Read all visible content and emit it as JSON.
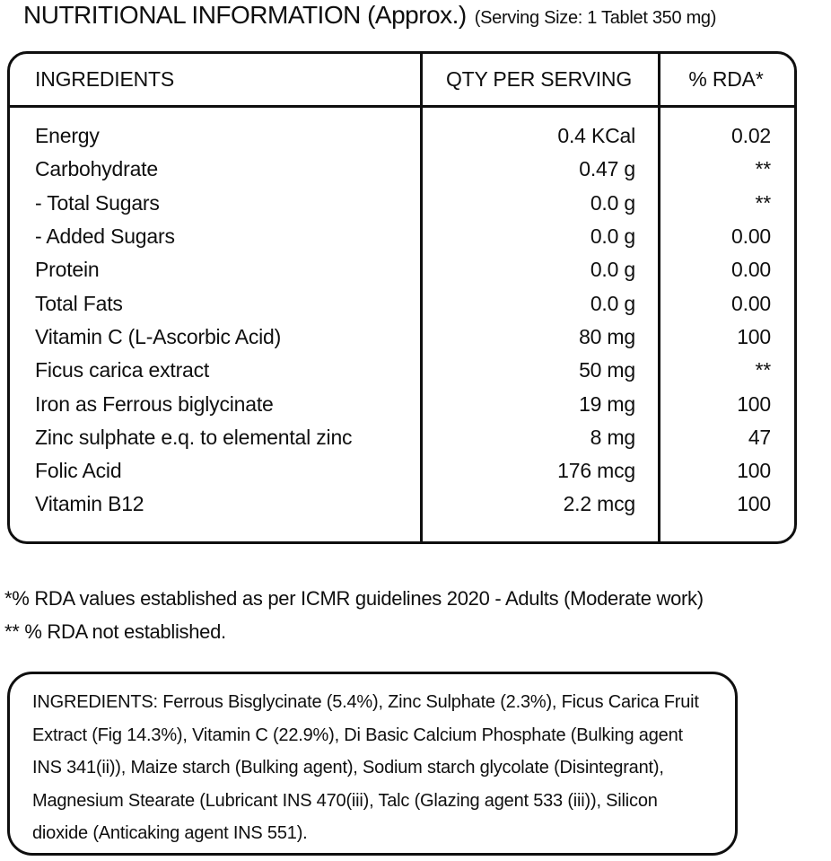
{
  "title": {
    "main": "NUTRITIONAL INFORMATION (Approx.)",
    "serving": "(Serving Size: 1 Tablet 350 mg)"
  },
  "table": {
    "headers": [
      "INGREDIENTS",
      "QTY PER SERVING",
      "% RDA*"
    ],
    "rows": [
      {
        "ingredient": "Energy",
        "qty": "0.4 KCal",
        "rda": "0.02"
      },
      {
        "ingredient": "Carbohydrate",
        "qty": "0.47 g",
        "rda": "**"
      },
      {
        "ingredient": "- Total Sugars",
        "qty": "0.0 g",
        "rda": "**"
      },
      {
        "ingredient": "- Added Sugars",
        "qty": "0.0 g",
        "rda": "0.00"
      },
      {
        "ingredient": "Protein",
        "qty": "0.0 g",
        "rda": "0.00"
      },
      {
        "ingredient": "Total Fats",
        "qty": "0.0 g",
        "rda": "0.00"
      },
      {
        "ingredient": "Vitamin C (L-Ascorbic Acid)",
        "qty": "80 mg",
        "rda": "100"
      },
      {
        "ingredient": "Ficus carica extract",
        "qty": "50 mg",
        "rda": "**"
      },
      {
        "ingredient": "Iron as Ferrous biglycinate",
        "qty": "19 mg",
        "rda": "100"
      },
      {
        "ingredient": "Zinc sulphate e.q. to elemental zinc",
        "qty": "8 mg",
        "rda": "47"
      },
      {
        "ingredient": "Folic Acid",
        "qty": "176 mcg",
        "rda": "100"
      },
      {
        "ingredient": "Vitamin B12",
        "qty": "2.2 mcg",
        "rda": "100"
      }
    ]
  },
  "footnotes": [
    "*% RDA values established as per ICMR guidelines 2020 - Adults (Moderate work)",
    "** % RDA not established."
  ],
  "ingredients_box": {
    "text": "INGREDIENTS: Ferrous Bisglycinate (5.4%), Zinc Sulphate (2.3%), Ficus Carica Fruit Extract (Fig 14.3%), Vitamin C (22.9%), Di Basic Calcium Phosphate (Bulking agent INS 341(ii)), Maize starch (Bulking agent), Sodium starch glycolate (Disintegrant), Magnesium Stearate (Lubricant INS 470(iii), Talc (Glazing agent 533 (iii)), Silicon dioxide (Anticaking agent INS 551)."
  },
  "colors": {
    "text": "#0f0f0f",
    "border": "#0f0f0f",
    "background": "#ffffff"
  }
}
